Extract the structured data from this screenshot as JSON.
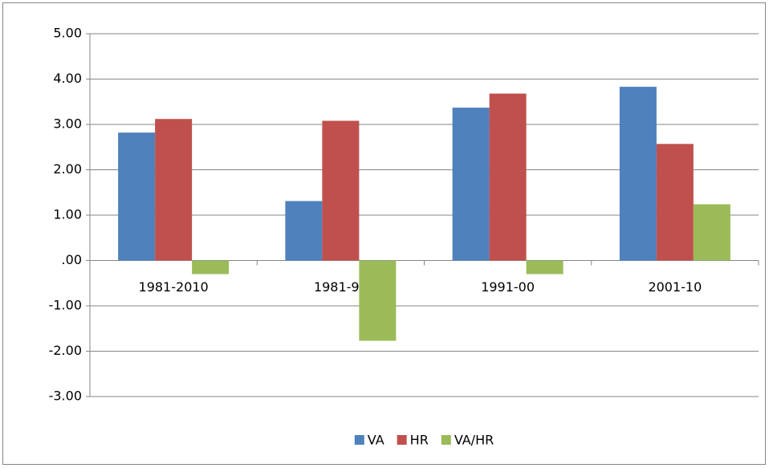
{
  "chart_data": {
    "type": "bar",
    "categories": [
      "1981-2010",
      "1981-90",
      "1991-00",
      "2001-10"
    ],
    "series": [
      {
        "name": "VA",
        "color": "#4f81bd",
        "values": [
          2.82,
          1.31,
          3.37,
          3.83
        ]
      },
      {
        "name": "HR",
        "color": "#c0504d",
        "values": [
          3.12,
          3.08,
          3.68,
          2.57
        ]
      },
      {
        "name": "VA/HR",
        "color": "#9bbb59",
        "values": [
          -0.3,
          -1.77,
          -0.3,
          1.24
        ]
      }
    ],
    "ylim": [
      -3,
      5
    ],
    "yticks": [
      {
        "value": -3,
        "label": "-3.00"
      },
      {
        "value": -2,
        "label": "-2.00"
      },
      {
        "value": -1,
        "label": "-1.00"
      },
      {
        "value": 0,
        "label": ".00"
      },
      {
        "value": 1,
        "label": "1.00"
      },
      {
        "value": 2,
        "label": "2.00"
      },
      {
        "value": 3,
        "label": "3.00"
      },
      {
        "value": 4,
        "label": "4.00"
      },
      {
        "value": 5,
        "label": "5.00"
      }
    ],
    "grid": true,
    "legend": "bottom"
  }
}
